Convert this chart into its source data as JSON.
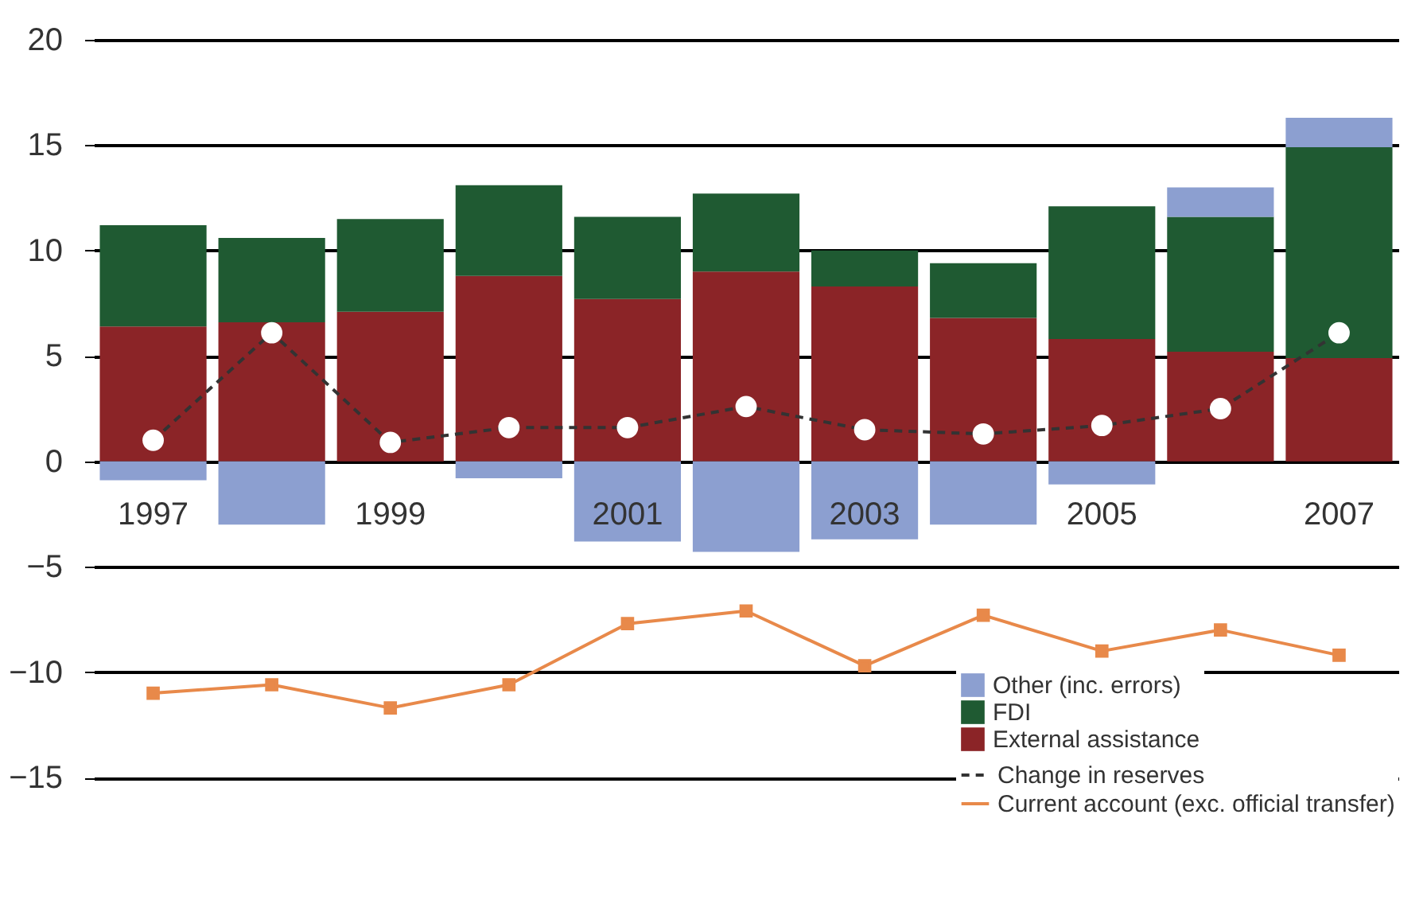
{
  "chart_data": {
    "type": "bar",
    "stacked": true,
    "categories": [
      "1997",
      null,
      "1999",
      null,
      "2001",
      null,
      "2003",
      null,
      "2005",
      null,
      "2007"
    ],
    "series": [
      {
        "name": "External assistance",
        "type": "bar",
        "color": "#8b2427",
        "values": [
          6.4,
          6.6,
          7.1,
          8.8,
          7.7,
          9.0,
          8.3,
          6.8,
          5.8,
          5.2,
          4.9
        ]
      },
      {
        "name": "FDI",
        "type": "bar",
        "color": "#1f5a32",
        "values": [
          4.8,
          4.0,
          4.4,
          4.3,
          3.9,
          3.7,
          1.7,
          2.6,
          6.3,
          6.4,
          10.0
        ]
      },
      {
        "name": "Other (inc. errors)",
        "type": "bar",
        "color": "#8c9fd0",
        "values": [
          -0.9,
          -3.0,
          0,
          -0.8,
          -3.8,
          -4.3,
          -3.7,
          -3.0,
          -1.1,
          1.4,
          1.4
        ]
      },
      {
        "name": "Change in reserves",
        "type": "line",
        "color": "#333333",
        "line_style": "dashed",
        "marker": "circle",
        "values": [
          1.0,
          6.1,
          0.9,
          1.6,
          1.6,
          2.6,
          1.5,
          1.3,
          1.7,
          2.5,
          6.1
        ]
      },
      {
        "name": "Current account (exc. official transfer)",
        "type": "line",
        "color": "#e8894a",
        "line_style": "solid",
        "marker": "square",
        "values": [
          -11.0,
          -10.6,
          -11.7,
          -10.6,
          -7.7,
          -7.1,
          -9.7,
          -7.3,
          -9.0,
          -8.0,
          -9.2
        ]
      }
    ],
    "ylim": [
      -17,
      20
    ],
    "yticks": [
      -15,
      -10,
      -5,
      0,
      5,
      10,
      15,
      20
    ],
    "grid": "y",
    "legend": "bottom right"
  }
}
